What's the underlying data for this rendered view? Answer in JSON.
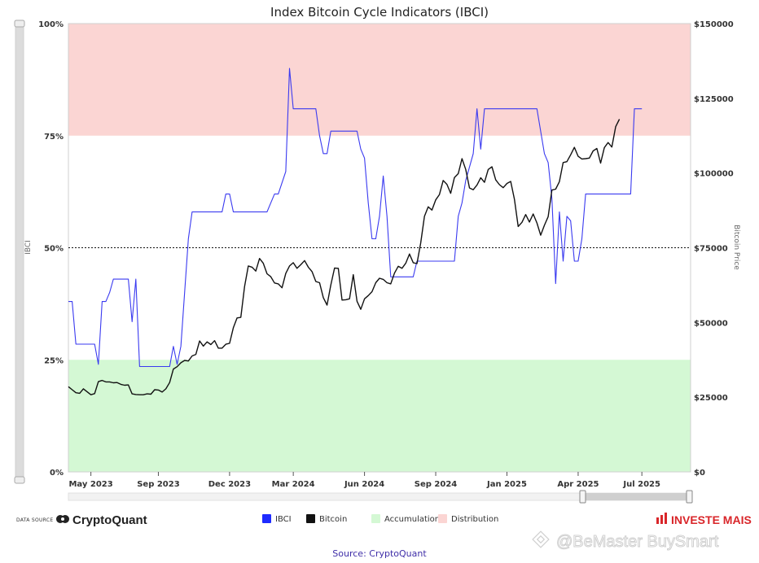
{
  "chart_data": {
    "type": "line",
    "title": "Index Bitcoin Cycle Indicators (IBCI)",
    "left_axis": {
      "label": "IBCI",
      "range": [
        0,
        100
      ],
      "ticks": [
        "0%",
        "25%",
        "50%",
        "75%",
        "100%"
      ]
    },
    "right_axis": {
      "label": "Bitcoin Price",
      "range": [
        0,
        150000
      ],
      "ticks": [
        "$0",
        "$25000",
        "$50000",
        "$75000",
        "$100000",
        "$125000",
        "$150000"
      ]
    },
    "x_range": [
      0,
      166
    ],
    "x_ticks": [
      {
        "label": "May 2023",
        "x": 6
      },
      {
        "label": "Sep 2023",
        "x": 24
      },
      {
        "label": "Dec 2023",
        "x": 43
      },
      {
        "label": "Mar 2024",
        "x": 60
      },
      {
        "label": "Jun 2024",
        "x": 79
      },
      {
        "label": "Sep 2024",
        "x": 98
      },
      {
        "label": "Jan 2025",
        "x": 117
      },
      {
        "label": "Apr 2025",
        "x": 136
      },
      {
        "label": "Jul 2025",
        "x": 153
      }
    ],
    "zones": [
      {
        "name": "Distribution",
        "from": 75,
        "to": 100,
        "color": "#fbd5d3"
      },
      {
        "name": "Accumulation",
        "from": 0,
        "to": 25,
        "color": "#d4f8d4"
      }
    ],
    "midline": 50,
    "series": [
      {
        "name": "IBCI",
        "color": "#3a3af0",
        "axis": "left",
        "points": [
          [
            0,
            38
          ],
          [
            1,
            38
          ],
          [
            2,
            28.5
          ],
          [
            5,
            28.5
          ],
          [
            7,
            28.5
          ],
          [
            8,
            24
          ],
          [
            9,
            38
          ],
          [
            10,
            38
          ],
          [
            11,
            40
          ],
          [
            12,
            43
          ],
          [
            16,
            43
          ],
          [
            17,
            33.5
          ],
          [
            18,
            43
          ],
          [
            19,
            23.5
          ],
          [
            27,
            23.5
          ],
          [
            28,
            28
          ],
          [
            29,
            24
          ],
          [
            30,
            28
          ],
          [
            32,
            52
          ],
          [
            33,
            58
          ],
          [
            41,
            58
          ],
          [
            42,
            62
          ],
          [
            43,
            62
          ],
          [
            44,
            58
          ],
          [
            53,
            58
          ],
          [
            55,
            62
          ],
          [
            56,
            62
          ],
          [
            58,
            67
          ],
          [
            59,
            90
          ],
          [
            60,
            81
          ],
          [
            65,
            81
          ],
          [
            66,
            81
          ],
          [
            67,
            75
          ],
          [
            68,
            71
          ],
          [
            69,
            71
          ],
          [
            70,
            76
          ],
          [
            77,
            76
          ],
          [
            78,
            72
          ],
          [
            79,
            70
          ],
          [
            80,
            60
          ],
          [
            81,
            52
          ],
          [
            82,
            52
          ],
          [
            83,
            57
          ],
          [
            84,
            66
          ],
          [
            85,
            57
          ],
          [
            86,
            43.5
          ],
          [
            91,
            43.5
          ],
          [
            92,
            43.5
          ],
          [
            93,
            47
          ],
          [
            94,
            47
          ],
          [
            103,
            47
          ],
          [
            104,
            57
          ],
          [
            105,
            60
          ],
          [
            106,
            65
          ],
          [
            108,
            71
          ],
          [
            109,
            81
          ],
          [
            110,
            72
          ],
          [
            111,
            81
          ],
          [
            125,
            81
          ],
          [
            127,
            71
          ],
          [
            128,
            69
          ],
          [
            129,
            61
          ],
          [
            130,
            42
          ],
          [
            131,
            58
          ],
          [
            132,
            47
          ],
          [
            133,
            57
          ],
          [
            134,
            56
          ],
          [
            135,
            47
          ],
          [
            136,
            47
          ],
          [
            137,
            52
          ],
          [
            138,
            62
          ],
          [
            150,
            62
          ],
          [
            151,
            81
          ],
          [
            153,
            81
          ]
        ]
      },
      {
        "name": "Bitcoin",
        "color": "#111111",
        "axis": "right",
        "points": [
          [
            0,
            28500
          ],
          [
            1,
            27500
          ],
          [
            2,
            26500
          ],
          [
            3,
            26300
          ],
          [
            4,
            27800
          ],
          [
            5,
            26800
          ],
          [
            6,
            25800
          ],
          [
            7,
            26200
          ],
          [
            8,
            30200
          ],
          [
            9,
            30600
          ],
          [
            10,
            30100
          ],
          [
            11,
            30100
          ],
          [
            12,
            29800
          ],
          [
            13,
            29900
          ],
          [
            14,
            29300
          ],
          [
            15,
            29000
          ],
          [
            16,
            29100
          ],
          [
            17,
            26100
          ],
          [
            18,
            25900
          ],
          [
            19,
            25800
          ],
          [
            20,
            25800
          ],
          [
            21,
            26100
          ],
          [
            22,
            26000
          ],
          [
            23,
            27500
          ],
          [
            24,
            27400
          ],
          [
            25,
            26700
          ],
          [
            26,
            27800
          ],
          [
            27,
            29900
          ],
          [
            28,
            34400
          ],
          [
            29,
            35200
          ],
          [
            30,
            36500
          ],
          [
            31,
            37300
          ],
          [
            32,
            37100
          ],
          [
            33,
            38800
          ],
          [
            34,
            39300
          ],
          [
            35,
            43800
          ],
          [
            36,
            42100
          ],
          [
            37,
            43500
          ],
          [
            38,
            42600
          ],
          [
            39,
            43900
          ],
          [
            40,
            41400
          ],
          [
            41,
            41400
          ],
          [
            42,
            42700
          ],
          [
            43,
            43000
          ],
          [
            44,
            48200
          ],
          [
            45,
            51500
          ],
          [
            46,
            51700
          ],
          [
            47,
            62000
          ],
          [
            48,
            68900
          ],
          [
            49,
            68500
          ],
          [
            50,
            67200
          ],
          [
            51,
            71400
          ],
          [
            52,
            69800
          ],
          [
            53,
            66300
          ],
          [
            54,
            65300
          ],
          [
            55,
            63200
          ],
          [
            56,
            62900
          ],
          [
            57,
            61600
          ],
          [
            58,
            66400
          ],
          [
            59,
            68900
          ],
          [
            60,
            70000
          ],
          [
            61,
            68100
          ],
          [
            62,
            69300
          ],
          [
            63,
            70700
          ],
          [
            64,
            68500
          ],
          [
            65,
            67000
          ],
          [
            66,
            63700
          ],
          [
            67,
            63300
          ],
          [
            68,
            58300
          ],
          [
            69,
            55800
          ],
          [
            70,
            62500
          ],
          [
            71,
            68200
          ],
          [
            72,
            68100
          ],
          [
            73,
            57500
          ],
          [
            74,
            57600
          ],
          [
            75,
            57900
          ],
          [
            76,
            66000
          ],
          [
            77,
            57100
          ],
          [
            78,
            54400
          ],
          [
            79,
            57900
          ],
          [
            80,
            59000
          ],
          [
            81,
            60300
          ],
          [
            82,
            63300
          ],
          [
            83,
            64800
          ],
          [
            84,
            64400
          ],
          [
            85,
            63300
          ],
          [
            86,
            62900
          ],
          [
            87,
            66500
          ],
          [
            88,
            68800
          ],
          [
            89,
            68100
          ],
          [
            90,
            69800
          ],
          [
            91,
            72900
          ],
          [
            92,
            70000
          ],
          [
            93,
            69700
          ],
          [
            94,
            76600
          ],
          [
            95,
            85500
          ],
          [
            96,
            88700
          ],
          [
            97,
            87600
          ],
          [
            98,
            91000
          ],
          [
            99,
            92800
          ],
          [
            100,
            97500
          ],
          [
            101,
            96200
          ],
          [
            102,
            93200
          ],
          [
            103,
            98500
          ],
          [
            104,
            99800
          ],
          [
            105,
            104800
          ],
          [
            106,
            101200
          ],
          [
            107,
            95000
          ],
          [
            108,
            94400
          ],
          [
            109,
            96000
          ],
          [
            110,
            98400
          ],
          [
            111,
            96900
          ],
          [
            112,
            101200
          ],
          [
            113,
            102100
          ],
          [
            114,
            97700
          ],
          [
            115,
            96100
          ],
          [
            116,
            95100
          ],
          [
            117,
            96500
          ],
          [
            118,
            97200
          ],
          [
            119,
            91200
          ],
          [
            120,
            82100
          ],
          [
            121,
            83500
          ],
          [
            122,
            86100
          ],
          [
            123,
            83600
          ],
          [
            124,
            86300
          ],
          [
            125,
            83300
          ],
          [
            126,
            79200
          ],
          [
            127,
            82500
          ],
          [
            128,
            85400
          ],
          [
            129,
            94300
          ],
          [
            130,
            94600
          ],
          [
            131,
            97100
          ],
          [
            132,
            103500
          ],
          [
            133,
            103800
          ],
          [
            134,
            106100
          ],
          [
            135,
            108600
          ],
          [
            136,
            105600
          ],
          [
            137,
            104700
          ],
          [
            138,
            104800
          ],
          [
            139,
            105000
          ],
          [
            140,
            107400
          ],
          [
            141,
            108200
          ],
          [
            142,
            103300
          ],
          [
            143,
            108500
          ],
          [
            144,
            110200
          ],
          [
            145,
            108700
          ],
          [
            146,
            115500
          ],
          [
            147,
            118000
          ]
        ]
      }
    ],
    "legend": {
      "items": [
        {
          "label": "IBCI",
          "color": "#1e2bff"
        },
        {
          "label": "Bitcoin",
          "color": "#111111"
        },
        {
          "label": "Accumulation",
          "color": "#d4f8d4"
        },
        {
          "label": "Distribution",
          "color": "#fbd5d3"
        }
      ]
    }
  },
  "footer": {
    "data_source_label": "DATA SOURCE",
    "cryptoquant_logo_text": "CryptoQuant",
    "investe_mais_logo_text": "INVESTE MAIS",
    "watermark": "@BeMaster BuySmart",
    "source_text": "Source: CryptoQuant"
  }
}
